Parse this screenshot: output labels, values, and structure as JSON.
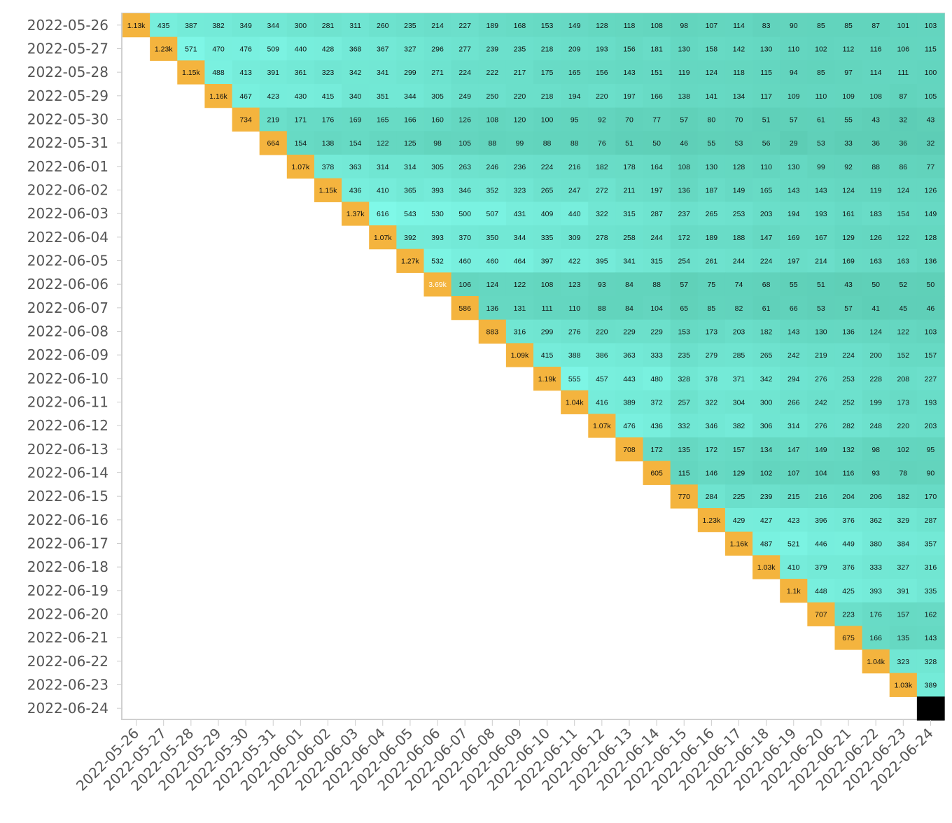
{
  "chart_data": {
    "type": "heatmap",
    "dates": [
      "2022-05-26",
      "2022-05-27",
      "2022-05-28",
      "2022-05-29",
      "2022-05-30",
      "2022-05-31",
      "2022-06-01",
      "2022-06-02",
      "2022-06-03",
      "2022-06-04",
      "2022-06-05",
      "2022-06-06",
      "2022-06-07",
      "2022-06-08",
      "2022-06-09",
      "2022-06-10",
      "2022-06-11",
      "2022-06-12",
      "2022-06-13",
      "2022-06-14",
      "2022-06-15",
      "2022-06-16",
      "2022-06-17",
      "2022-06-18",
      "2022-06-19",
      "2022-06-20",
      "2022-06-21",
      "2022-06-22",
      "2022-06-23",
      "2022-06-24"
    ],
    "values": [
      [
        "1.13k",
        435,
        387,
        382,
        349,
        344,
        300,
        281,
        311,
        260,
        235,
        214,
        227,
        189,
        168,
        153,
        149,
        128,
        118,
        108,
        98,
        107,
        114,
        83,
        90,
        85,
        85,
        87,
        101,
        103
      ],
      [
        "1.23k",
        571,
        470,
        476,
        509,
        440,
        428,
        368,
        367,
        327,
        296,
        277,
        239,
        235,
        218,
        209,
        193,
        156,
        181,
        130,
        158,
        142,
        130,
        110,
        102,
        112,
        116,
        106,
        115
      ],
      [
        "1.15k",
        488,
        413,
        391,
        361,
        323,
        342,
        341,
        299,
        271,
        224,
        222,
        217,
        175,
        165,
        156,
        143,
        151,
        119,
        124,
        118,
        115,
        94,
        85,
        97,
        114,
        111,
        100
      ],
      [
        "1.16k",
        467,
        423,
        430,
        415,
        340,
        351,
        344,
        305,
        249,
        250,
        220,
        218,
        194,
        220,
        197,
        166,
        138,
        141,
        134,
        117,
        109,
        110,
        109,
        108,
        87,
        105
      ],
      [
        734,
        219,
        171,
        176,
        169,
        165,
        166,
        160,
        126,
        108,
        120,
        100,
        95,
        92,
        70,
        77,
        57,
        80,
        70,
        51,
        57,
        61,
        55,
        43,
        32,
        43
      ],
      [
        664,
        154,
        138,
        154,
        122,
        125,
        98,
        105,
        88,
        99,
        88,
        88,
        76,
        51,
        50,
        46,
        55,
        53,
        56,
        29,
        53,
        33,
        36,
        36,
        32
      ],
      [
        "1.07k",
        378,
        363,
        314,
        314,
        305,
        263,
        246,
        236,
        224,
        216,
        182,
        178,
        164,
        108,
        130,
        128,
        110,
        130,
        99,
        92,
        88,
        86,
        77
      ],
      [
        "1.15k",
        436,
        410,
        365,
        393,
        346,
        352,
        323,
        265,
        247,
        272,
        211,
        197,
        136,
        187,
        149,
        165,
        143,
        143,
        124,
        119,
        124,
        126
      ],
      [
        "1.37k",
        616,
        543,
        530,
        500,
        507,
        431,
        409,
        440,
        322,
        315,
        287,
        237,
        265,
        253,
        203,
        194,
        193,
        161,
        183,
        154,
        149
      ],
      [
        "1.07k",
        392,
        393,
        370,
        350,
        344,
        335,
        309,
        278,
        258,
        244,
        172,
        189,
        188,
        147,
        169,
        167,
        129,
        126,
        122,
        128
      ],
      [
        "1.27k",
        532,
        460,
        460,
        464,
        397,
        422,
        395,
        341,
        315,
        254,
        261,
        244,
        224,
        197,
        214,
        169,
        163,
        163,
        136
      ],
      [
        "3.69k",
        106,
        124,
        122,
        108,
        123,
        93,
        84,
        88,
        57,
        75,
        74,
        68,
        55,
        51,
        43,
        50,
        52,
        50
      ],
      [
        586,
        136,
        131,
        111,
        110,
        88,
        84,
        104,
        65,
        85,
        82,
        61,
        66,
        53,
        57,
        41,
        45,
        46
      ],
      [
        883,
        316,
        299,
        276,
        220,
        229,
        229,
        153,
        173,
        203,
        182,
        143,
        130,
        136,
        124,
        122,
        103
      ],
      [
        "1.09k",
        415,
        388,
        386,
        363,
        333,
        235,
        279,
        285,
        265,
        242,
        219,
        224,
        200,
        152,
        157
      ],
      [
        "1.19k",
        555,
        457,
        443,
        480,
        328,
        378,
        371,
        342,
        294,
        276,
        253,
        228,
        208,
        227
      ],
      [
        "1.04k",
        416,
        389,
        372,
        257,
        322,
        304,
        300,
        266,
        242,
        252,
        199,
        173,
        193
      ],
      [
        "1.07k",
        476,
        436,
        332,
        346,
        382,
        306,
        314,
        276,
        282,
        248,
        220,
        203
      ],
      [
        708,
        172,
        135,
        172,
        157,
        134,
        147,
        149,
        132,
        98,
        102,
        95
      ],
      [
        605,
        115,
        146,
        129,
        102,
        107,
        104,
        116,
        93,
        78,
        90
      ],
      [
        770,
        284,
        225,
        239,
        215,
        216,
        204,
        206,
        182,
        170
      ],
      [
        "1.23k",
        429,
        427,
        423,
        396,
        376,
        362,
        329,
        287
      ],
      [
        "1.16k",
        487,
        521,
        446,
        449,
        380,
        384,
        357
      ],
      [
        "1.03k",
        410,
        379,
        376,
        333,
        327,
        316
      ],
      [
        "1.1k",
        448,
        425,
        393,
        391,
        335
      ],
      [
        707,
        223,
        176,
        157,
        162
      ],
      [
        675,
        166,
        135,
        143
      ],
      [
        "1.04k",
        323,
        328
      ],
      [
        "1.03k",
        389
      ],
      [
        ""
      ]
    ],
    "colors": {
      "diagonal": "#F4B43E",
      "diagonal_outlier": "#F4B43E",
      "last_cell": "#000000",
      "low": "#5DCDB5",
      "high": "#7FF8E8"
    },
    "grid": false
  }
}
